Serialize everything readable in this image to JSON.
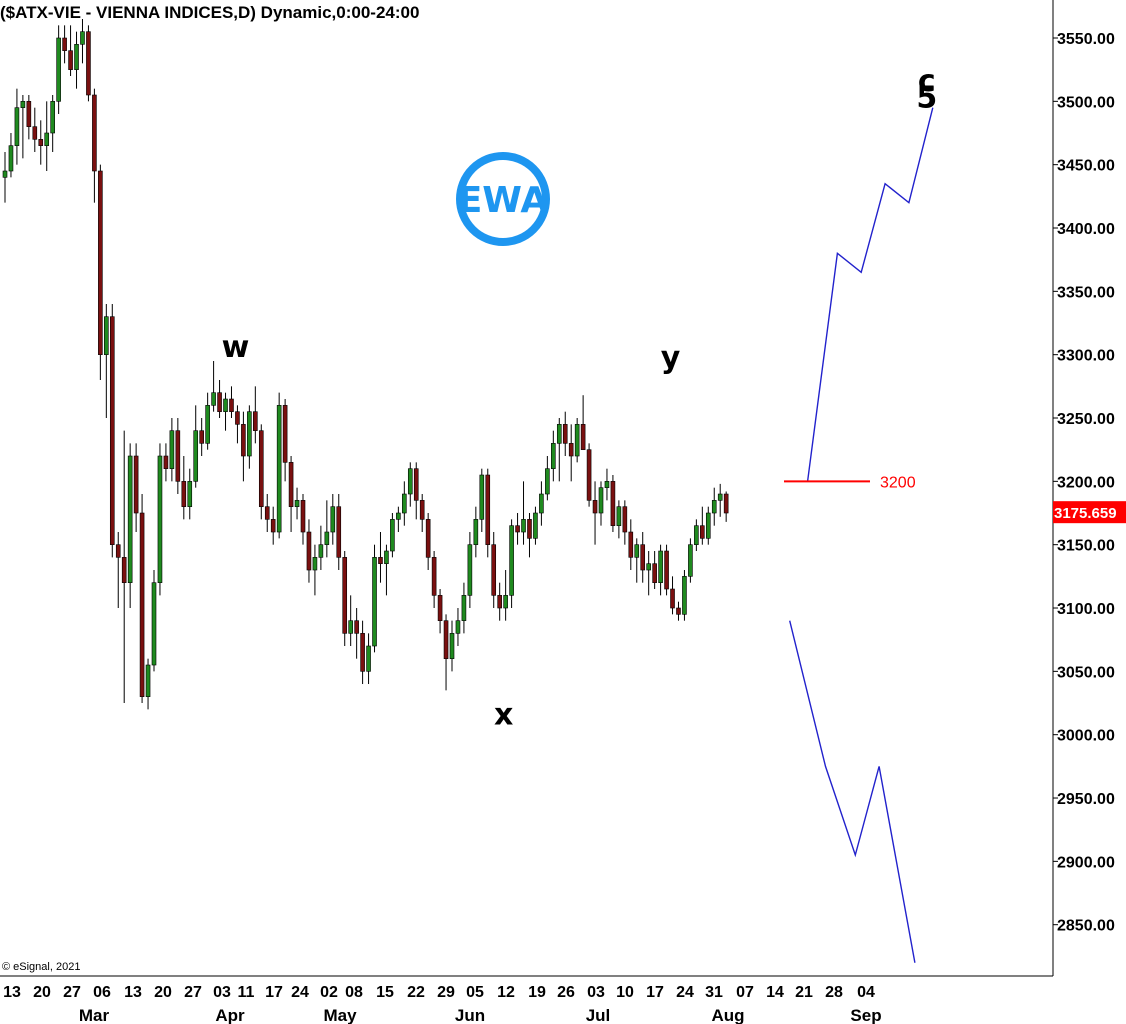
{
  "chart_data": {
    "type": "candlestick",
    "title": "($ATX-VIE - VIENNA INDICES,D) Dynamic,0:00-24:00",
    "copyright": "© eSignal, 2021",
    "logo_text": "EWA",
    "ylim": [
      2810,
      3570
    ],
    "y_ticks": [
      "3550.00",
      "3500.00",
      "3450.00",
      "3400.00",
      "3350.00",
      "3300.00",
      "3250.00",
      "3200.00",
      "3150.00",
      "3100.00",
      "3050.00",
      "3000.00",
      "2950.00",
      "2900.00",
      "2850.00"
    ],
    "x_tick_labels": [
      "13",
      "20",
      "27",
      "06",
      "13",
      "20",
      "27",
      "03",
      "11",
      "17",
      "24",
      "02",
      "08",
      "15",
      "22",
      "29",
      "05",
      "12",
      "19",
      "26",
      "03",
      "10",
      "17",
      "24",
      "31",
      "07",
      "14",
      "21",
      "28",
      "04"
    ],
    "month_labels": [
      "Mar",
      "Apr",
      "May",
      "Jun",
      "Jul",
      "Aug",
      "Sep"
    ],
    "last_price": "3175.659",
    "colors": {
      "up": "#1f8a1f",
      "down": "#7a1010",
      "projection": "#2222cc",
      "level": "#ff0000"
    },
    "candles": [
      {
        "o": 3440,
        "h": 3460,
        "l": 3420,
        "c": 3445
      },
      {
        "o": 3445,
        "h": 3475,
        "l": 3440,
        "c": 3465
      },
      {
        "o": 3465,
        "h": 3510,
        "l": 3450,
        "c": 3495
      },
      {
        "o": 3495,
        "h": 3505,
        "l": 3455,
        "c": 3500
      },
      {
        "o": 3500,
        "h": 3505,
        "l": 3470,
        "c": 3480
      },
      {
        "o": 3480,
        "h": 3495,
        "l": 3460,
        "c": 3470
      },
      {
        "o": 3470,
        "h": 3485,
        "l": 3450,
        "c": 3465
      },
      {
        "o": 3465,
        "h": 3500,
        "l": 3445,
        "c": 3475
      },
      {
        "o": 3475,
        "h": 3505,
        "l": 3460,
        "c": 3500
      },
      {
        "o": 3500,
        "h": 3560,
        "l": 3490,
        "c": 3550
      },
      {
        "o": 3550,
        "h": 3560,
        "l": 3530,
        "c": 3540
      },
      {
        "o": 3540,
        "h": 3560,
        "l": 3520,
        "c": 3525
      },
      {
        "o": 3525,
        "h": 3555,
        "l": 3510,
        "c": 3545
      },
      {
        "o": 3545,
        "h": 3565,
        "l": 3530,
        "c": 3555
      },
      {
        "o": 3555,
        "h": 3560,
        "l": 3500,
        "c": 3505
      },
      {
        "o": 3505,
        "h": 3510,
        "l": 3420,
        "c": 3445
      },
      {
        "o": 3445,
        "h": 3450,
        "l": 3280,
        "c": 3300
      },
      {
        "o": 3300,
        "h": 3340,
        "l": 3250,
        "c": 3330
      },
      {
        "o": 3330,
        "h": 3340,
        "l": 3140,
        "c": 3150
      },
      {
        "o": 3150,
        "h": 3160,
        "l": 3100,
        "c": 3140
      },
      {
        "o": 3140,
        "h": 3240,
        "l": 3025,
        "c": 3120
      },
      {
        "o": 3120,
        "h": 3230,
        "l": 3100,
        "c": 3220
      },
      {
        "o": 3220,
        "h": 3230,
        "l": 3160,
        "c": 3175
      },
      {
        "o": 3175,
        "h": 3190,
        "l": 3025,
        "c": 3030
      },
      {
        "o": 3030,
        "h": 3060,
        "l": 3020,
        "c": 3055
      },
      {
        "o": 3055,
        "h": 3130,
        "l": 3050,
        "c": 3120
      },
      {
        "o": 3120,
        "h": 3230,
        "l": 3110,
        "c": 3220
      },
      {
        "o": 3220,
        "h": 3230,
        "l": 3200,
        "c": 3210
      },
      {
        "o": 3210,
        "h": 3250,
        "l": 3200,
        "c": 3240
      },
      {
        "o": 3240,
        "h": 3250,
        "l": 3190,
        "c": 3200
      },
      {
        "o": 3200,
        "h": 3220,
        "l": 3170,
        "c": 3180
      },
      {
        "o": 3180,
        "h": 3210,
        "l": 3170,
        "c": 3200
      },
      {
        "o": 3200,
        "h": 3260,
        "l": 3195,
        "c": 3240
      },
      {
        "o": 3240,
        "h": 3250,
        "l": 3220,
        "c": 3230
      },
      {
        "o": 3230,
        "h": 3270,
        "l": 3225,
        "c": 3260
      },
      {
        "o": 3260,
        "h": 3295,
        "l": 3255,
        "c": 3270
      },
      {
        "o": 3270,
        "h": 3280,
        "l": 3250,
        "c": 3255
      },
      {
        "o": 3255,
        "h": 3270,
        "l": 3240,
        "c": 3265
      },
      {
        "o": 3265,
        "h": 3275,
        "l": 3250,
        "c": 3255
      },
      {
        "o": 3255,
        "h": 3260,
        "l": 3230,
        "c": 3245
      },
      {
        "o": 3245,
        "h": 3255,
        "l": 3200,
        "c": 3220
      },
      {
        "o": 3220,
        "h": 3260,
        "l": 3210,
        "c": 3255
      },
      {
        "o": 3255,
        "h": 3275,
        "l": 3230,
        "c": 3240
      },
      {
        "o": 3240,
        "h": 3245,
        "l": 3170,
        "c": 3180
      },
      {
        "o": 3180,
        "h": 3190,
        "l": 3160,
        "c": 3170
      },
      {
        "o": 3170,
        "h": 3180,
        "l": 3150,
        "c": 3160
      },
      {
        "o": 3160,
        "h": 3270,
        "l": 3155,
        "c": 3260
      },
      {
        "o": 3260,
        "h": 3265,
        "l": 3200,
        "c": 3215
      },
      {
        "o": 3215,
        "h": 3220,
        "l": 3160,
        "c": 3180
      },
      {
        "o": 3180,
        "h": 3195,
        "l": 3170,
        "c": 3185
      },
      {
        "o": 3185,
        "h": 3190,
        "l": 3150,
        "c": 3160
      },
      {
        "o": 3160,
        "h": 3170,
        "l": 3120,
        "c": 3130
      },
      {
        "o": 3130,
        "h": 3150,
        "l": 3110,
        "c": 3140
      },
      {
        "o": 3140,
        "h": 3165,
        "l": 3130,
        "c": 3150
      },
      {
        "o": 3150,
        "h": 3185,
        "l": 3140,
        "c": 3160
      },
      {
        "o": 3160,
        "h": 3190,
        "l": 3150,
        "c": 3180
      },
      {
        "o": 3180,
        "h": 3190,
        "l": 3130,
        "c": 3140
      },
      {
        "o": 3140,
        "h": 3145,
        "l": 3070,
        "c": 3080
      },
      {
        "o": 3080,
        "h": 3110,
        "l": 3070,
        "c": 3090
      },
      {
        "o": 3090,
        "h": 3100,
        "l": 3060,
        "c": 3080
      },
      {
        "o": 3080,
        "h": 3090,
        "l": 3040,
        "c": 3050
      },
      {
        "o": 3050,
        "h": 3080,
        "l": 3040,
        "c": 3070
      },
      {
        "o": 3070,
        "h": 3150,
        "l": 3065,
        "c": 3140
      },
      {
        "o": 3140,
        "h": 3160,
        "l": 3120,
        "c": 3135
      },
      {
        "o": 3135,
        "h": 3150,
        "l": 3110,
        "c": 3145
      },
      {
        "o": 3145,
        "h": 3175,
        "l": 3140,
        "c": 3170
      },
      {
        "o": 3170,
        "h": 3180,
        "l": 3160,
        "c": 3175
      },
      {
        "o": 3175,
        "h": 3200,
        "l": 3165,
        "c": 3190
      },
      {
        "o": 3190,
        "h": 3215,
        "l": 3180,
        "c": 3210
      },
      {
        "o": 3210,
        "h": 3215,
        "l": 3170,
        "c": 3185
      },
      {
        "o": 3185,
        "h": 3190,
        "l": 3160,
        "c": 3170
      },
      {
        "o": 3170,
        "h": 3175,
        "l": 3130,
        "c": 3140
      },
      {
        "o": 3140,
        "h": 3145,
        "l": 3100,
        "c": 3110
      },
      {
        "o": 3110,
        "h": 3115,
        "l": 3080,
        "c": 3090
      },
      {
        "o": 3090,
        "h": 3095,
        "l": 3035,
        "c": 3060
      },
      {
        "o": 3060,
        "h": 3090,
        "l": 3050,
        "c": 3080
      },
      {
        "o": 3080,
        "h": 3100,
        "l": 3070,
        "c": 3090
      },
      {
        "o": 3090,
        "h": 3120,
        "l": 3080,
        "c": 3110
      },
      {
        "o": 3110,
        "h": 3160,
        "l": 3100,
        "c": 3150
      },
      {
        "o": 3150,
        "h": 3180,
        "l": 3140,
        "c": 3170
      },
      {
        "o": 3170,
        "h": 3210,
        "l": 3160,
        "c": 3205
      },
      {
        "o": 3205,
        "h": 3210,
        "l": 3140,
        "c": 3150
      },
      {
        "o": 3150,
        "h": 3160,
        "l": 3100,
        "c": 3110
      },
      {
        "o": 3110,
        "h": 3120,
        "l": 3090,
        "c": 3100
      },
      {
        "o": 3100,
        "h": 3130,
        "l": 3090,
        "c": 3110
      },
      {
        "o": 3110,
        "h": 3170,
        "l": 3100,
        "c": 3165
      },
      {
        "o": 3165,
        "h": 3175,
        "l": 3150,
        "c": 3160
      },
      {
        "o": 3160,
        "h": 3200,
        "l": 3150,
        "c": 3170
      },
      {
        "o": 3170,
        "h": 3175,
        "l": 3140,
        "c": 3155
      },
      {
        "o": 3155,
        "h": 3180,
        "l": 3150,
        "c": 3175
      },
      {
        "o": 3175,
        "h": 3200,
        "l": 3165,
        "c": 3190
      },
      {
        "o": 3190,
        "h": 3220,
        "l": 3185,
        "c": 3210
      },
      {
        "o": 3210,
        "h": 3240,
        "l": 3200,
        "c": 3230
      },
      {
        "o": 3230,
        "h": 3250,
        "l": 3200,
        "c": 3245
      },
      {
        "o": 3245,
        "h": 3255,
        "l": 3220,
        "c": 3230
      },
      {
        "o": 3230,
        "h": 3245,
        "l": 3200,
        "c": 3220
      },
      {
        "o": 3220,
        "h": 3250,
        "l": 3215,
        "c": 3245
      },
      {
        "o": 3245,
        "h": 3268,
        "l": 3225,
        "c": 3225
      },
      {
        "o": 3225,
        "h": 3230,
        "l": 3180,
        "c": 3185
      },
      {
        "o": 3185,
        "h": 3200,
        "l": 3150,
        "c": 3175
      },
      {
        "o": 3175,
        "h": 3200,
        "l": 3165,
        "c": 3195
      },
      {
        "o": 3195,
        "h": 3210,
        "l": 3185,
        "c": 3200
      },
      {
        "o": 3200,
        "h": 3205,
        "l": 3160,
        "c": 3165
      },
      {
        "o": 3165,
        "h": 3185,
        "l": 3155,
        "c": 3180
      },
      {
        "o": 3180,
        "h": 3185,
        "l": 3150,
        "c": 3160
      },
      {
        "o": 3160,
        "h": 3170,
        "l": 3130,
        "c": 3140
      },
      {
        "o": 3140,
        "h": 3155,
        "l": 3120,
        "c": 3150
      },
      {
        "o": 3150,
        "h": 3160,
        "l": 3120,
        "c": 3130
      },
      {
        "o": 3130,
        "h": 3145,
        "l": 3110,
        "c": 3135
      },
      {
        "o": 3135,
        "h": 3145,
        "l": 3115,
        "c": 3120
      },
      {
        "o": 3120,
        "h": 3150,
        "l": 3110,
        "c": 3145
      },
      {
        "o": 3145,
        "h": 3150,
        "l": 3110,
        "c": 3115
      },
      {
        "o": 3115,
        "h": 3125,
        "l": 3095,
        "c": 3100
      },
      {
        "o": 3100,
        "h": 3105,
        "l": 3090,
        "c": 3095
      },
      {
        "o": 3095,
        "h": 3130,
        "l": 3090,
        "c": 3125
      },
      {
        "o": 3125,
        "h": 3155,
        "l": 3120,
        "c": 3150
      },
      {
        "o": 3150,
        "h": 3170,
        "l": 3145,
        "c": 3165
      },
      {
        "o": 3165,
        "h": 3180,
        "l": 3150,
        "c": 3155
      },
      {
        "o": 3155,
        "h": 3180,
        "l": 3150,
        "c": 3175
      },
      {
        "o": 3175,
        "h": 3195,
        "l": 3165,
        "c": 3185
      },
      {
        "o": 3185,
        "h": 3198,
        "l": 3172,
        "c": 3190
      },
      {
        "o": 3190,
        "h": 3192,
        "l": 3168,
        "c": 3175
      }
    ],
    "level_line": {
      "value": 3200,
      "label": "3200"
    },
    "projections": [
      {
        "name": "",
        "points": [
          [
            135,
            3200
          ],
          [
            140,
            3380
          ],
          [
            144,
            3365
          ],
          [
            148,
            3435
          ],
          [
            152,
            3420
          ],
          [
            156,
            3495
          ]
        ]
      },
      {
        "name": "",
        "points": [
          [
            132,
            3090
          ],
          [
            138,
            2975
          ],
          [
            143,
            2905
          ],
          [
            147,
            2975
          ],
          [
            153,
            2820
          ]
        ]
      }
    ],
    "wave_labels": [
      {
        "text": "w",
        "x": 39,
        "y": 3298
      },
      {
        "text": "x",
        "x": 84,
        "y": 3008
      },
      {
        "text": "y",
        "x": 112,
        "y": 3290
      },
      {
        "text": "c",
        "x": 155,
        "y": 3508
      },
      {
        "text": "5",
        "x": 155,
        "y": 3495
      }
    ]
  }
}
